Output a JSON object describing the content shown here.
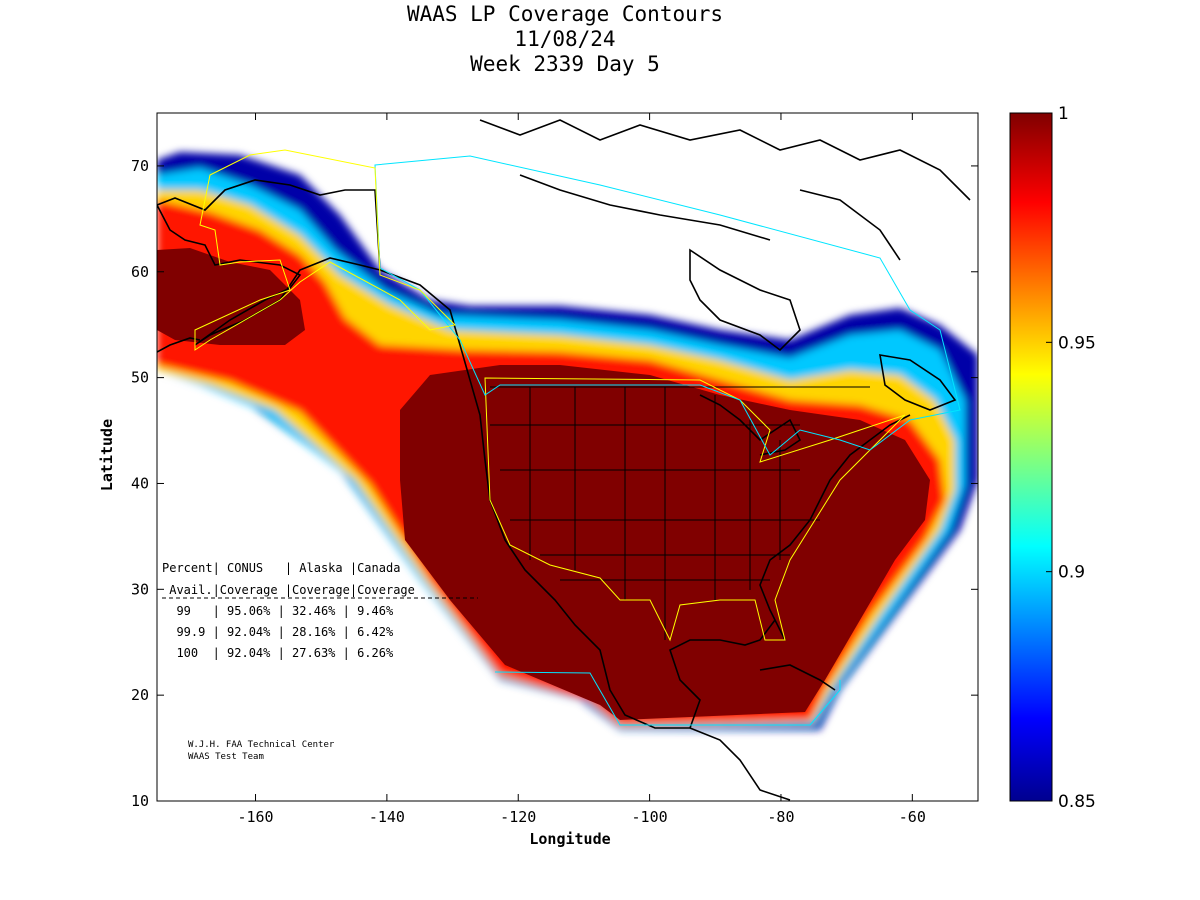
{
  "title": {
    "line1": "WAAS LP Coverage Contours",
    "line2": "11/08/24",
    "line3": "Week 2339 Day 5"
  },
  "axes": {
    "xlabel": "Longitude",
    "ylabel": "Latitude",
    "x_ticks": [
      "-160",
      "-140",
      "-120",
      "-100",
      "-80",
      "-60"
    ],
    "y_ticks": [
      "10",
      "20",
      "30",
      "40",
      "50",
      "60",
      "70"
    ],
    "xlim": [
      -175,
      -50
    ],
    "ylim": [
      10,
      75
    ]
  },
  "colorbar": {
    "ticks": [
      "0.85",
      "0.9",
      "0.95",
      "1"
    ],
    "range": [
      0.85,
      1
    ],
    "colormap": "jet"
  },
  "table": {
    "header1": "Percent| CONUS   | Alaska |Canada",
    "header2": " Avail.|Coverage |Coverage|Coverage",
    "rows": [
      "  99   | 95.06% | 32.46% | 9.46%",
      "  99.9 | 92.04% | 28.16% | 6.42%",
      "  100  | 92.04% | 27.63% | 6.26%"
    ]
  },
  "credit": {
    "line1": "W.J.H. FAA Technical Center",
    "line2": "WAAS Test Team"
  },
  "colors": {
    "full_coverage": "#800000",
    "region_conus": "#ffff00",
    "region_canada": "#00e5ff"
  }
}
